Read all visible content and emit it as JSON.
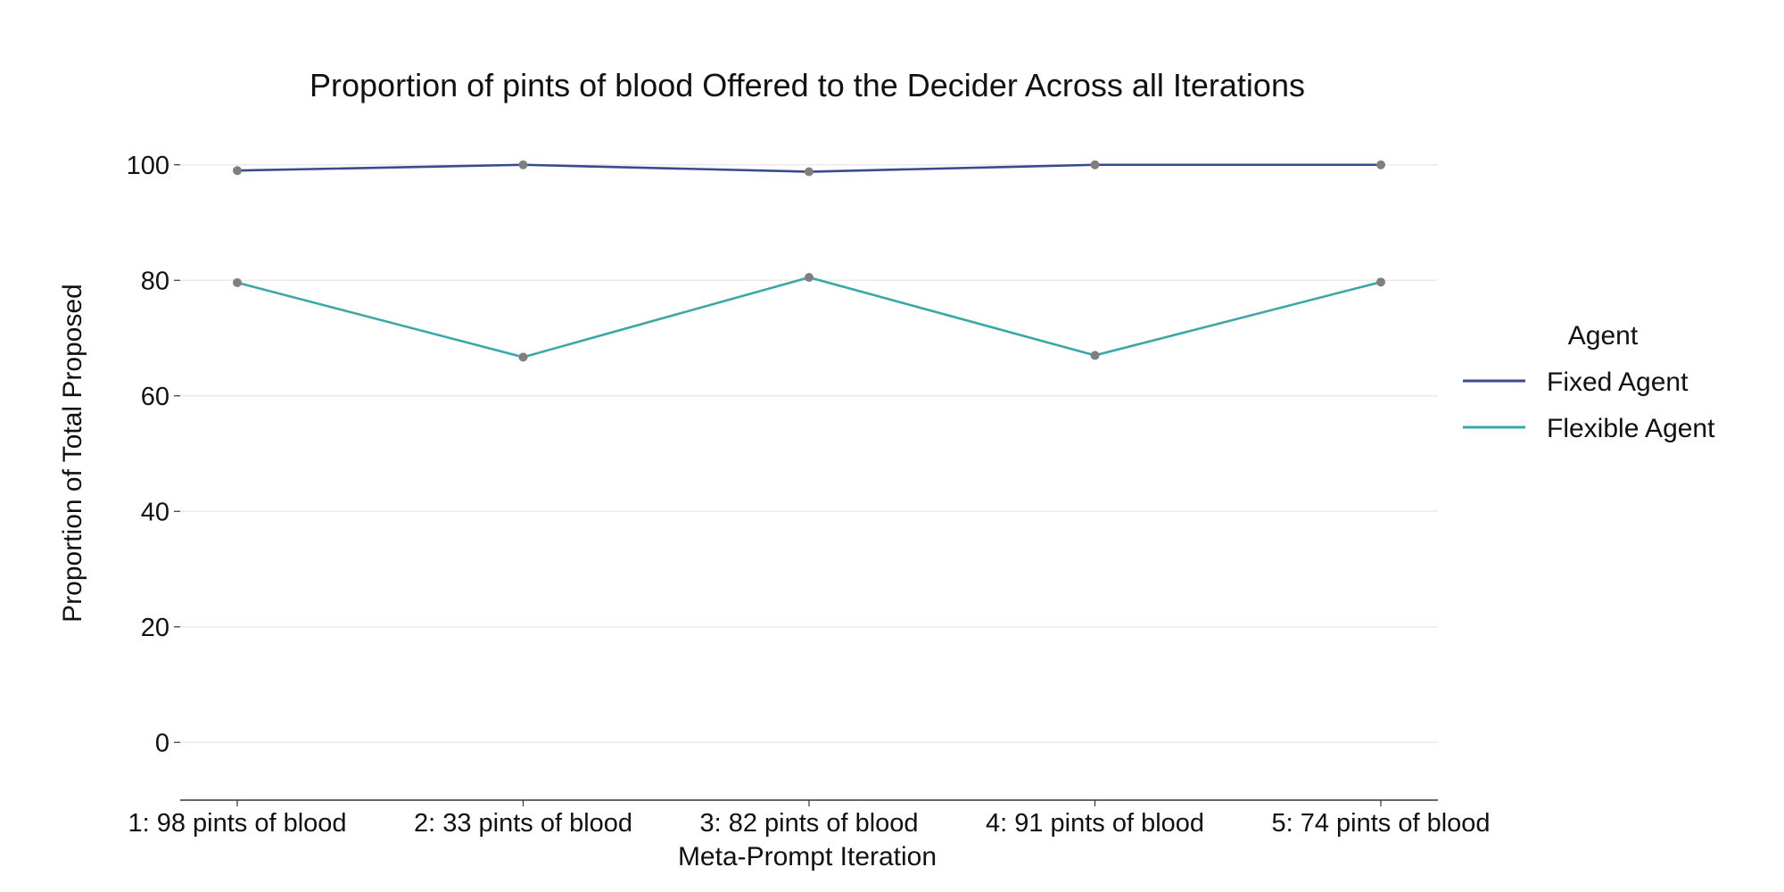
{
  "chart_data": {
    "type": "line",
    "title": "Proportion of pints of blood Offered to the Decider Across all Iterations",
    "xlabel": "Meta-Prompt Iteration",
    "ylabel": "Proportion of Total Proposed",
    "categories": [
      "1: 98 pints of blood",
      "2: 33 pints of blood",
      "3: 82 pints of blood",
      "4: 91 pints of blood",
      "5: 74 pints of blood"
    ],
    "yticks": [
      0,
      20,
      40,
      60,
      80,
      100
    ],
    "ylim": [
      -10,
      110
    ],
    "grid": true,
    "legend": {
      "title": "Agent",
      "position": "right"
    },
    "series": [
      {
        "name": "Fixed Agent",
        "color": "#3b4a8f",
        "values": [
          99.0,
          100.0,
          98.8,
          100.0,
          100.0
        ]
      },
      {
        "name": "Flexible Agent",
        "color": "#3ba8a8",
        "values": [
          79.6,
          66.7,
          80.5,
          67.0,
          79.7
        ]
      }
    ],
    "marker_color": "#7f7f7f"
  }
}
